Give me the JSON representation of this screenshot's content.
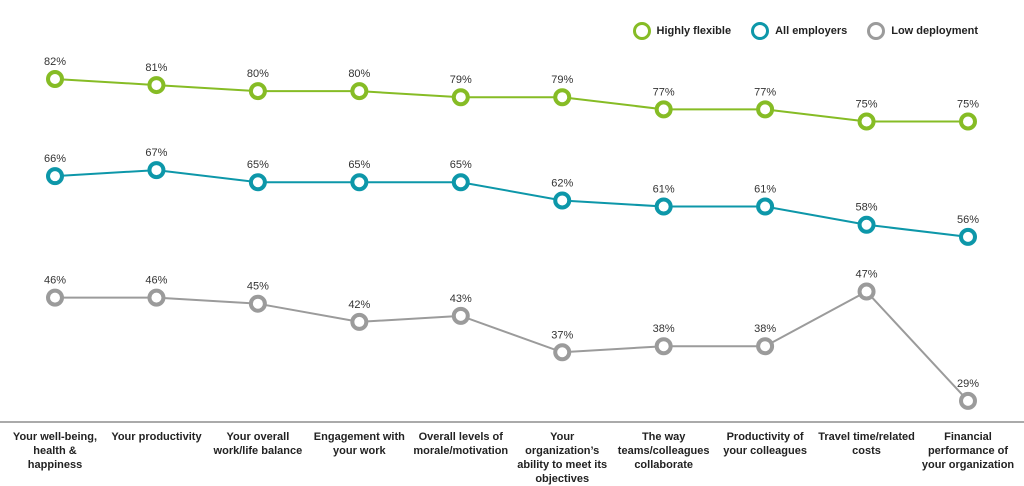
{
  "chart_data": {
    "type": "line",
    "categories": [
      "Your well-being, health & happiness",
      "Your productivity",
      "Your overall work/life balance",
      "Engagement with your work",
      "Overall levels of morale/motivation",
      "Your organization’s ability to meet its objectives",
      "The way teams/colleagues collaborate",
      "Productivity of your colleagues",
      "Travel time/related costs",
      "Financial performance of your organization"
    ],
    "series": [
      {
        "name": "Highly flexible",
        "color": "#86bc25",
        "values": [
          82,
          81,
          80,
          80,
          79,
          79,
          77,
          77,
          75,
          75
        ]
      },
      {
        "name": "All employers",
        "color": "#0d97a9",
        "values": [
          66,
          67,
          65,
          65,
          65,
          62,
          61,
          61,
          58,
          56
        ]
      },
      {
        "name": "Low deployment",
        "color": "#9b9b9b",
        "values": [
          46,
          46,
          45,
          42,
          43,
          37,
          38,
          38,
          47,
          29
        ]
      }
    ],
    "value_suffix": "%",
    "ylim": [
      27,
      82
    ],
    "grid": false,
    "legend": "top-right"
  }
}
